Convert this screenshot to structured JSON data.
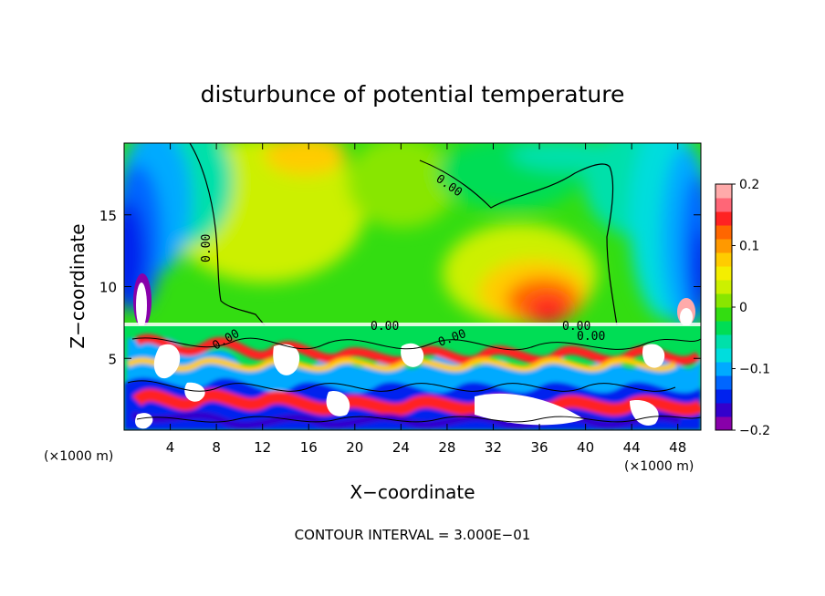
{
  "chart_data": {
    "type": "heatmap",
    "title": "disturbunce of potential temperature",
    "xlabel": "X−coordinate",
    "ylabel": "Z−coordinate",
    "x_unit": "(×1000 m)",
    "x_unit_right": "(×1000 m)",
    "x_ticks": [
      4,
      8,
      12,
      16,
      20,
      24,
      28,
      32,
      36,
      40,
      44,
      48
    ],
    "y_ticks": [
      5,
      10,
      15
    ],
    "xlim": [
      0,
      50
    ],
    "ylim": [
      0,
      20
    ],
    "colorbar": {
      "ticks": [
        "0.2",
        "0.1",
        "0",
        "−0.1",
        "−0.2"
      ],
      "range": [
        -0.2,
        0.2
      ],
      "colors": [
        "#8800aa",
        "#3300cc",
        "#0022ee",
        "#0066ff",
        "#00aaff",
        "#00dddd",
        "#00e0aa",
        "#00dd55",
        "#33dd11",
        "#88e600",
        "#ccf000",
        "#f4ee00",
        "#ffcc00",
        "#ff9900",
        "#ff6600",
        "#ff2222",
        "#ff6677",
        "#ffaaaa"
      ]
    },
    "contour_labels": [
      "0.00",
      "0.00",
      "0.00",
      "0.00",
      "0.00",
      "0.00",
      "0.00"
    ],
    "footer": "CONTOUR INTERVAL = 3.000E−01"
  }
}
